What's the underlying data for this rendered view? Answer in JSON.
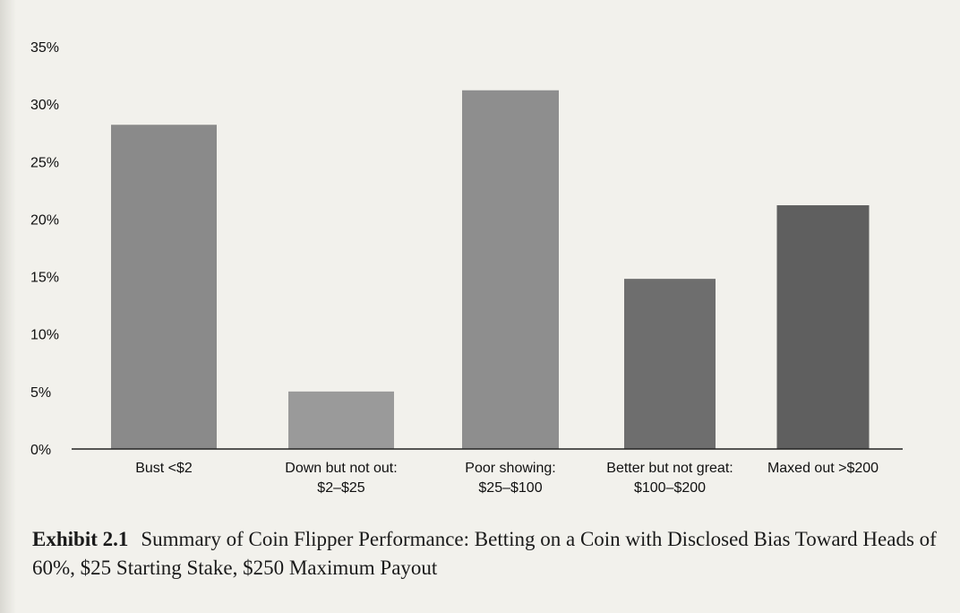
{
  "chart_data": {
    "type": "bar",
    "categories": [
      [
        "Bust <$2"
      ],
      [
        "Down but not out:",
        "$2–$25"
      ],
      [
        "Poor showing:",
        "$25–$100"
      ],
      [
        "Better but not great:",
        "$100–$200"
      ],
      [
        "Maxed out >$200"
      ]
    ],
    "values": [
      28.2,
      5.0,
      31.2,
      14.8,
      21.2
    ],
    "ylim": [
      0,
      35
    ],
    "yticks": [
      0,
      5,
      10,
      15,
      20,
      25,
      30,
      35
    ],
    "ytick_labels": [
      "0%",
      "5%",
      "10%",
      "15%",
      "20%",
      "25%",
      "30%",
      "35%"
    ],
    "bar_colors": [
      "#8a8a8a",
      "#9a9a9a",
      "#8e8e8e",
      "#6e6e6e",
      "#5f5f5f"
    ],
    "grid": false,
    "xlabel": "",
    "ylabel": ""
  },
  "caption": {
    "label": "Exhibit 2.1",
    "text": "Summary of Coin Flipper Performance: Betting on a Coin with Disclosed Bias Toward Heads of 60%, $25 Starting Stake, $250 Maximum Payout"
  }
}
